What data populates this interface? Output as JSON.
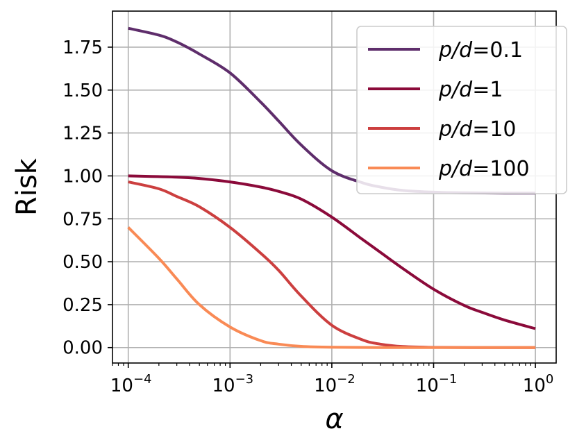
{
  "chart_data": {
    "type": "line",
    "title": "",
    "xlabel": "α",
    "ylabel": "Risk",
    "xscale": "log",
    "xlim": [
      7e-05,
      1.6
    ],
    "ylim": [
      -0.09,
      1.96
    ],
    "grid": true,
    "legend_position": "top-right",
    "x_ticks": [
      {
        "value": 0.0001,
        "base": "10",
        "exp": "−4"
      },
      {
        "value": 0.001,
        "base": "10",
        "exp": "−3"
      },
      {
        "value": 0.01,
        "base": "10",
        "exp": "−2"
      },
      {
        "value": 0.1,
        "base": "10",
        "exp": "−1"
      },
      {
        "value": 1,
        "base": "10",
        "exp": "0"
      }
    ],
    "y_ticks": [
      {
        "value": 0.0,
        "label": "0.00"
      },
      {
        "value": 0.25,
        "label": "0.25"
      },
      {
        "value": 0.5,
        "label": "0.50"
      },
      {
        "value": 0.75,
        "label": "0.75"
      },
      {
        "value": 1.0,
        "label": "1.00"
      },
      {
        "value": 1.25,
        "label": "1.25"
      },
      {
        "value": 1.5,
        "label": "1.50"
      },
      {
        "value": 1.75,
        "label": "1.75"
      }
    ],
    "series": [
      {
        "name_prefix": "p/d",
        "name_value": "=0.1",
        "color": "#5e2d6b",
        "x": [
          0.0001,
          0.0002,
          0.0003,
          0.0005,
          0.001,
          0.002,
          0.003,
          0.005,
          0.01,
          0.02,
          0.03,
          0.05,
          0.1,
          0.2,
          0.5,
          1
        ],
        "y": [
          1.86,
          1.82,
          1.78,
          1.71,
          1.6,
          1.43,
          1.32,
          1.18,
          1.03,
          0.96,
          0.935,
          0.915,
          0.905,
          0.902,
          0.9,
          0.9
        ]
      },
      {
        "name_prefix": "p/d",
        "name_value": "=1",
        "color": "#8b0a3a",
        "x": [
          0.0001,
          0.0003,
          0.0005,
          0.001,
          0.002,
          0.003,
          0.005,
          0.01,
          0.02,
          0.03,
          0.05,
          0.1,
          0.2,
          0.3,
          0.5,
          1
        ],
        "y": [
          1.0,
          0.993,
          0.985,
          0.965,
          0.935,
          0.91,
          0.865,
          0.76,
          0.63,
          0.555,
          0.46,
          0.34,
          0.245,
          0.205,
          0.16,
          0.11
        ]
      },
      {
        "name_prefix": "p/d",
        "name_value": "=10",
        "color": "#cc3f3f",
        "x": [
          0.0001,
          0.0002,
          0.0003,
          0.0005,
          0.001,
          0.002,
          0.003,
          0.005,
          0.01,
          0.02,
          0.03,
          0.05,
          0.1,
          0.3,
          1
        ],
        "y": [
          0.965,
          0.925,
          0.88,
          0.82,
          0.7,
          0.55,
          0.45,
          0.3,
          0.13,
          0.045,
          0.02,
          0.006,
          0.001,
          0.0,
          0.0
        ]
      },
      {
        "name_prefix": "p/d",
        "name_value": "=100",
        "color": "#f98a55",
        "x": [
          0.0001,
          0.0002,
          0.0003,
          0.0005,
          0.001,
          0.002,
          0.003,
          0.005,
          0.01,
          0.03,
          0.1,
          1
        ],
        "y": [
          0.7,
          0.52,
          0.4,
          0.25,
          0.12,
          0.04,
          0.02,
          0.007,
          0.002,
          0.0,
          0.0,
          0.0
        ]
      }
    ]
  }
}
